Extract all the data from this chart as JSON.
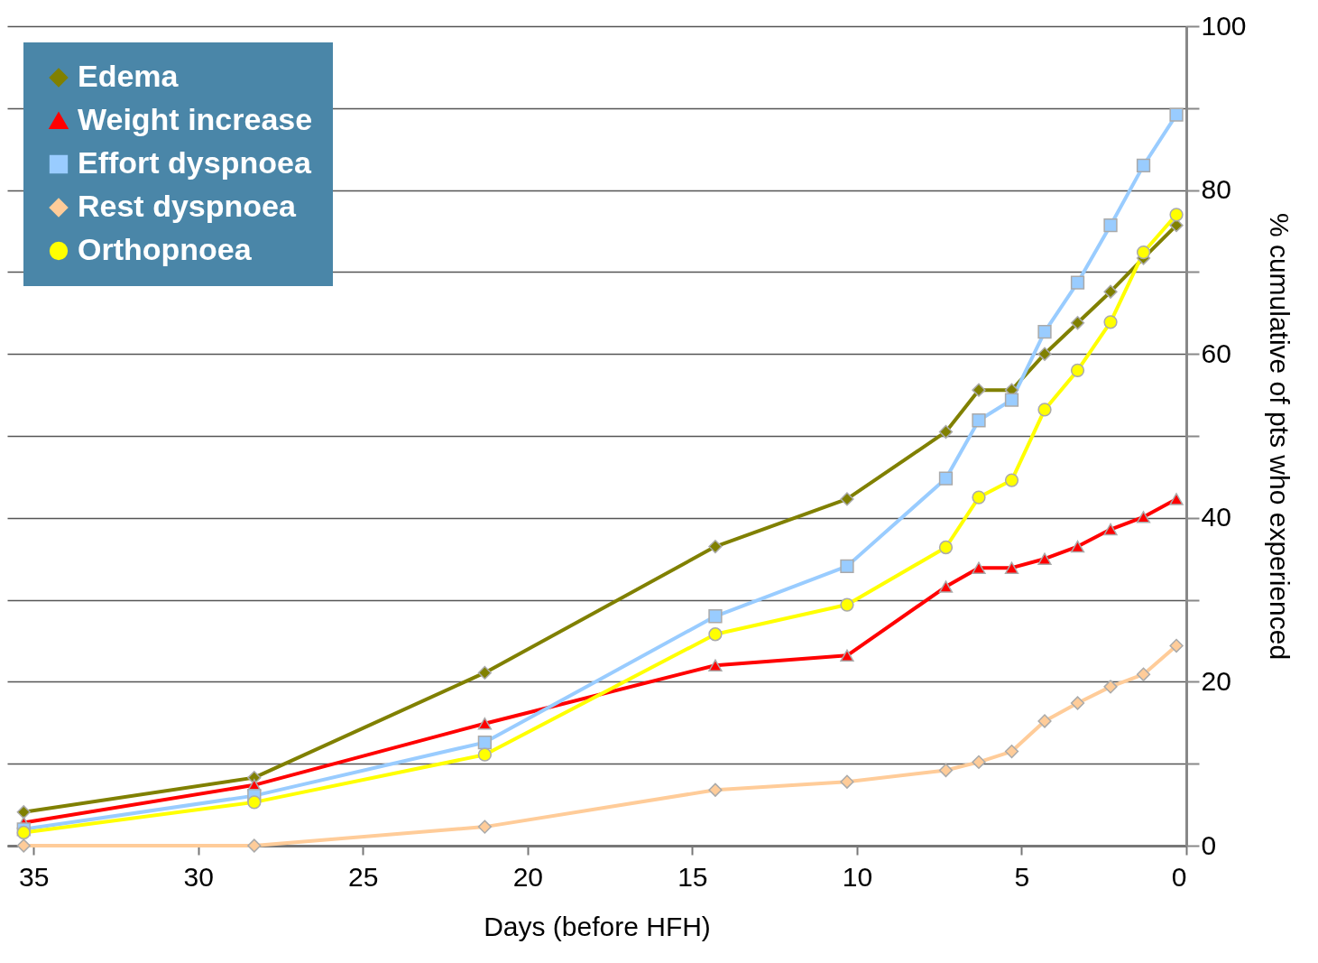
{
  "chart_data": {
    "type": "line",
    "xlabel": "Days (before HFH)",
    "ylabel": "% cumulative of pts who experienced",
    "x": [
      35.3,
      28.3,
      21.3,
      14.3,
      10.3,
      7.3,
      6.3,
      5.3,
      4.3,
      3.3,
      2.3,
      1.3,
      0.3
    ],
    "series": [
      {
        "name": "Edema",
        "color": "#808000",
        "marker": "diamond",
        "values": [
          4.1,
          8.3,
          21.1,
          36.5,
          42.3,
          50.5,
          55.6,
          55.6,
          60.0,
          63.8,
          67.6,
          71.7,
          75.7
        ]
      },
      {
        "name": "Weight increase",
        "color": "#ff0000",
        "marker": "triangle",
        "values": [
          2.8,
          7.4,
          14.9,
          22.0,
          23.2,
          31.6,
          33.9,
          33.9,
          35.0,
          36.5,
          38.6,
          40.1,
          42.3
        ]
      },
      {
        "name": "Effort dyspnoea",
        "color": "#99ccff",
        "marker": "square",
        "values": [
          2.0,
          6.1,
          12.6,
          28.0,
          34.1,
          44.8,
          51.9,
          54.4,
          62.7,
          68.7,
          75.7,
          83.0,
          89.2
        ]
      },
      {
        "name": "Rest dyspnoea",
        "color": "#ffcc99",
        "marker": "diamond",
        "values": [
          0,
          0,
          2.3,
          6.8,
          7.8,
          9.2,
          10.2,
          11.5,
          15.2,
          17.4,
          19.4,
          20.9,
          24.4
        ]
      },
      {
        "name": "Orthopnoea",
        "color": "#ffff00",
        "marker": "circle",
        "values": [
          1.6,
          5.3,
          11.1,
          25.8,
          29.4,
          36.4,
          42.5,
          44.6,
          53.2,
          58.0,
          63.9,
          72.4,
          77.0
        ]
      }
    ],
    "xlim": [
      35.8,
      0
    ],
    "xticks": [
      35,
      30,
      25,
      20,
      15,
      10,
      5,
      0
    ],
    "ylim": [
      0,
      100
    ],
    "yticks": [
      0,
      {
        "value": 10,
        "label": null
      },
      20,
      {
        "value": 30,
        "label": null
      },
      40,
      {
        "value": 50,
        "label": null
      },
      60,
      {
        "value": 70,
        "label": null
      },
      80,
      {
        "value": 90,
        "label": null
      },
      100
    ],
    "grid": "y",
    "legend": "top left",
    "line_style": "solid"
  }
}
